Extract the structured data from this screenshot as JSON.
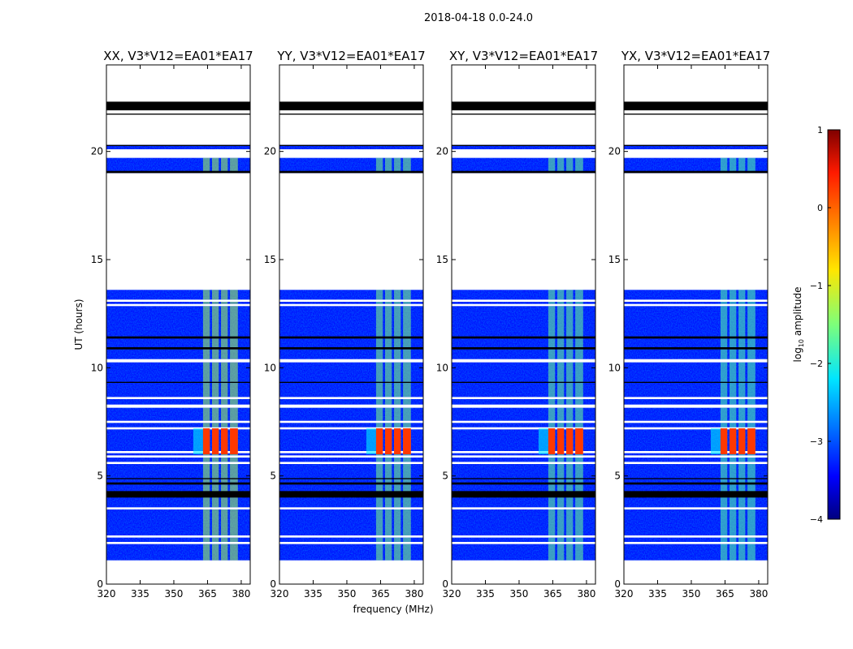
{
  "chart_data": {
    "type": "heatmap",
    "suptitle": "2018-04-18 0.0-24.0",
    "xlabel": "frequency (MHz)",
    "ylabel": "UT (hours)",
    "xlim": [
      320,
      384
    ],
    "ylim": [
      0,
      24
    ],
    "xticks": [
      "320",
      "335",
      "350",
      "365",
      "380"
    ],
    "xtick_values": [
      320,
      335,
      350,
      365,
      380
    ],
    "yticks": [
      "0",
      "5",
      "10",
      "15",
      "20"
    ],
    "ytick_values": [
      0,
      5,
      10,
      15,
      20
    ],
    "panels": [
      {
        "title": "XX, V3*V12=EA01*EA17",
        "rfi_level": -1.3
      },
      {
        "title": "YY, V3*V12=EA01*EA17",
        "rfi_level": -1.5
      },
      {
        "title": "XY, V3*V12=EA01*EA17",
        "rfi_level": -1.6
      },
      {
        "title": "YX, V3*V12=EA01*EA17",
        "rfi_level": -1.7
      }
    ],
    "data_blocks_hours": [
      [
        1.1,
        1.85
      ],
      [
        1.95,
        2.15
      ],
      [
        2.25,
        3.45
      ],
      [
        3.55,
        5.55
      ],
      [
        5.65,
        5.85
      ],
      [
        5.95,
        6.05
      ],
      [
        6.15,
        7.15
      ],
      [
        7.25,
        7.45
      ],
      [
        7.55,
        8.15
      ],
      [
        8.3,
        8.55
      ],
      [
        8.65,
        10.25
      ],
      [
        10.4,
        12.85
      ],
      [
        12.95,
        13.05
      ],
      [
        13.15,
        13.6
      ],
      [
        19.0,
        19.7
      ],
      [
        20.1,
        20.3
      ]
    ],
    "flagged_black_hours": [
      [
        4.0,
        4.3
      ],
      [
        4.6,
        4.7
      ],
      [
        4.85,
        4.9
      ],
      [
        9.3,
        9.35
      ],
      [
        10.85,
        10.95
      ],
      [
        11.35,
        11.45
      ],
      [
        19.0,
        19.1
      ],
      [
        20.25,
        20.3
      ],
      [
        21.9,
        22.3
      ],
      [
        21.7,
        21.75
      ]
    ],
    "rfi_columns_mhz": [
      [
        363,
        366
      ],
      [
        367,
        370
      ],
      [
        371,
        374
      ],
      [
        375,
        378.5
      ]
    ],
    "rfi_hours": [
      [
        1.1,
        13.6
      ],
      [
        19.0,
        19.7
      ]
    ],
    "strong_rfi": {
      "hours": [
        6.0,
        7.2
      ],
      "mhz": [
        363,
        379
      ],
      "level": 0.1
    },
    "background_level": -3.3,
    "colorbar": {
      "label": "log10 amplitude",
      "label_main": "log",
      "label_sub": "10",
      "label_rest": " amplitude",
      "range": [
        -4,
        1
      ],
      "ticks": [
        "1",
        "0",
        "−1",
        "−2",
        "−3",
        "−4"
      ],
      "tick_values": [
        1,
        0,
        -1,
        -2,
        -3,
        -4
      ],
      "colormap": "jet"
    }
  }
}
